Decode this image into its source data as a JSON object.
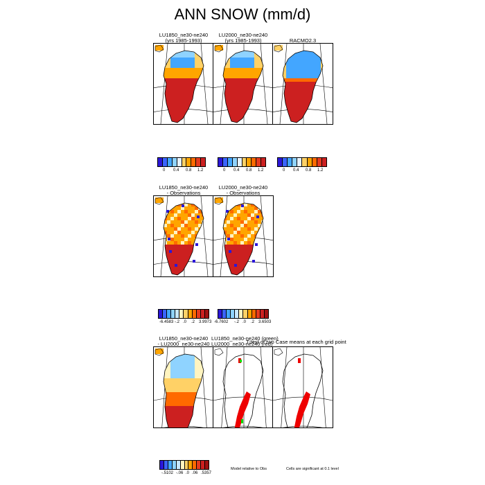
{
  "figure_title": "ANN SNOW (mm/d)",
  "row1": {
    "panels": [
      {
        "title_line1": "LU1850_ne30-ne240",
        "title_line2": "(yrs 1985-1993)"
      },
      {
        "title_line1": "LU2000_ne30-ne240",
        "title_line2": "(yrs 1985-1993)"
      },
      {
        "title_line1": "RACMO2.3",
        "title_line2": ""
      }
    ],
    "colorbar_colors": [
      "#2b17d8",
      "#3a64ff",
      "#43a6ff",
      "#8fd3ff",
      "#e7f3ff",
      "#ffd166",
      "#ffa500",
      "#ff6a00",
      "#e63b1f",
      "#cc2020"
    ],
    "colorbar_ticks": [
      "0",
      "0.4",
      "0.8",
      "1.2"
    ]
  },
  "row2": {
    "panels": [
      {
        "title_line1": "LU1850_ne30-ne240",
        "title_line2": "- Observations"
      },
      {
        "title_line1": "LU2000_ne30-ne240",
        "title_line2": "- Observations"
      }
    ],
    "colorbar_colors": [
      "#2b17d8",
      "#3a64ff",
      "#43a6ff",
      "#8fd3ff",
      "#c8e8ff",
      "#fff4c0",
      "#ffd166",
      "#ffa500",
      "#ff6a00",
      "#e63b1f",
      "#cc2020",
      "#a01010"
    ],
    "colorbars": [
      {
        "min": "-6.4583",
        "ticks": [
          "-.2",
          ".0",
          ".2"
        ],
        "max": "3.9973"
      },
      {
        "min": "-6.7602",
        "ticks": [
          "-.2",
          ".0",
          ".2"
        ],
        "max": "3.6503"
      }
    ]
  },
  "row3": {
    "panels": [
      {
        "title_line1": "LU1850_ne30-ne240",
        "title_line2": "- LU2000_ne30-ne240"
      },
      {
        "title_line1": "LU1850_ne30-ne240 (green)",
        "title_line2": "LU2000_ne30-ne240 (red)"
      },
      {
        "title_line1": "",
        "title_line2": ""
      }
    ],
    "overlay_label": "T-test of two Case means at each grid point",
    "colorbar_colors": [
      "#2b17d8",
      "#3a64ff",
      "#43a6ff",
      "#8fd3ff",
      "#c8e8ff",
      "#fff4c0",
      "#ffd166",
      "#ffa500",
      "#ff6a00",
      "#e63b1f",
      "#cc2020",
      "#a01010"
    ],
    "colorbar": {
      "min": "-.5102",
      "ticks": [
        "-.06",
        ".0",
        ".06"
      ],
      "max": ".5357"
    },
    "note_model": "Model relative to Obs",
    "note_sig": "Cells are significant at 0.1 level",
    "sig_colors": {
      "case1": "#00dd00",
      "case2": "#ee0000"
    }
  },
  "chart_data": {
    "type": "heatmap",
    "title": "ANN SNOW (mm/d)",
    "variable": "Annual snowfall",
    "units": "mm/d",
    "domain": "Greenland",
    "panels": [
      {
        "name": "LU1850_ne30-ne240",
        "period": "(yrs 1985-1993)",
        "pattern": "low values (~0-0.4, blue) over the northern interior, high values (~1.2+, red) over the southern half and coastal margins"
      },
      {
        "name": "LU2000_ne30-ne240",
        "period": "(yrs 1985-1993)",
        "pattern": "nearly identical to LU1850 panel"
      },
      {
        "name": "RACMO2.3",
        "pattern": "large low-value (blue) area over the north and northeast interior, high values (red) in the south and west"
      },
      {
        "name": "LU1850_ne30-ne240 - Observations",
        "range": [
          -6.4583,
          3.9973
        ],
        "pattern": "mostly positive bias (orange) across the north, strong positive bias (red) in the south, negative bias (blue) cells along the coast"
      },
      {
        "name": "LU2000_ne30-ne240 - Observations",
        "range": [
          -6.7602,
          3.6503
        ],
        "pattern": "nearly identical to LU1850 - Observations"
      },
      {
        "name": "LU1850_ne30-ne240 - LU2000_ne30-ne240",
        "range": [
          -0.5102,
          0.5357
        ]
      },
      {
        "name": "T-test of two Case means at each grid point",
        "significance_level": 0.1,
        "pattern": "significant cells in a band down the southern/central spine"
      }
    ],
    "colorbar_ticks_abs": [
      0,
      0.4,
      0.8,
      1.2
    ],
    "colorbar_ticks_bias": [
      -0.2,
      0.0,
      0.2
    ],
    "colorbar_ticks_diff": [
      -0.06,
      0.0,
      0.06
    ]
  }
}
